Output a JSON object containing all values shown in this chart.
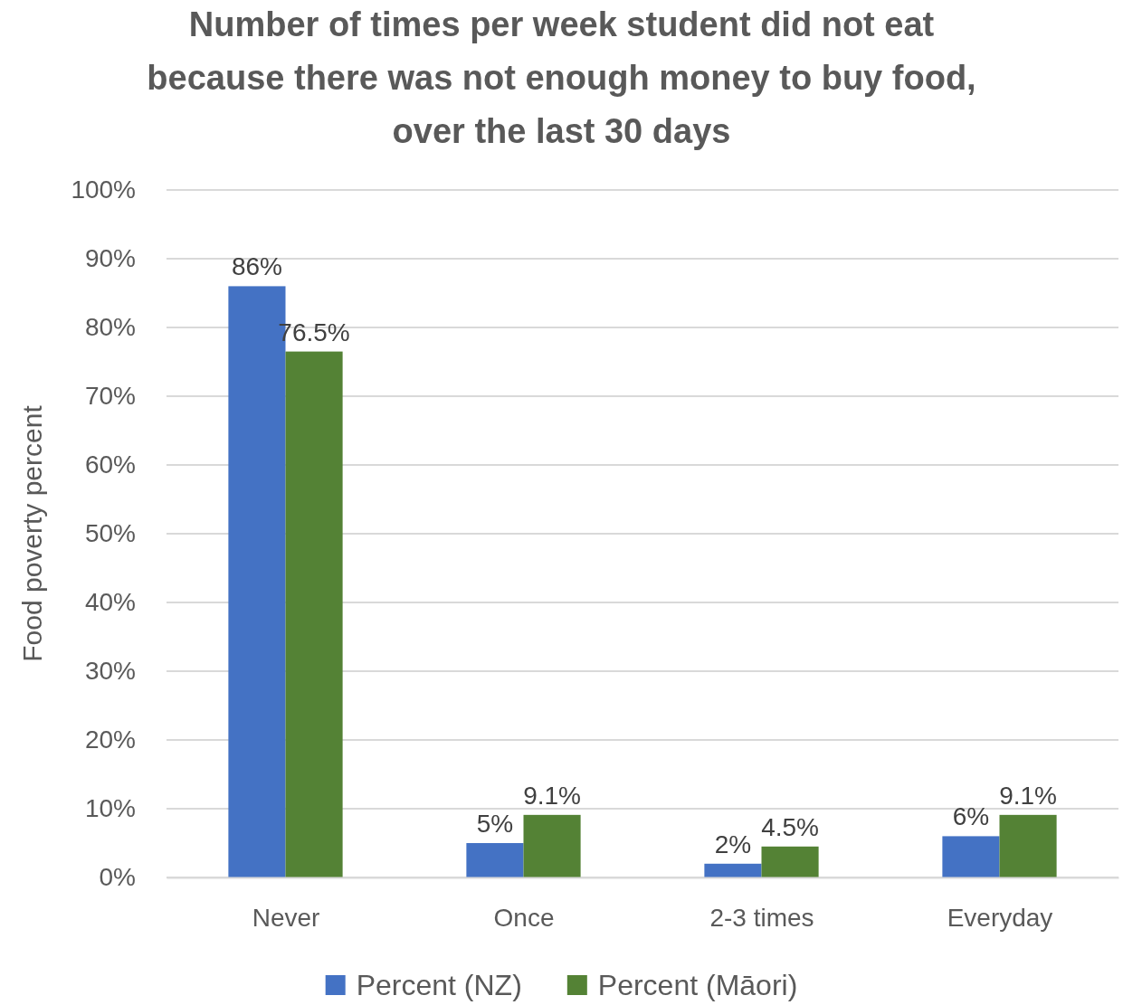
{
  "chart_data": {
    "type": "bar",
    "title": "Number of times per week student did not eat because there was not enough money to buy food, over the last 30 days",
    "ylabel": "Food poverty percent",
    "categories": [
      "Never",
      "Once",
      "2-3 times",
      "Everyday"
    ],
    "series": [
      {
        "name": "Percent (NZ)",
        "color": "#4472c4",
        "values": [
          86,
          5,
          2,
          6
        ],
        "value_labels": [
          "86%",
          "5%",
          "2%",
          "6%"
        ]
      },
      {
        "name": "Percent (Māori)",
        "color": "#548235",
        "values": [
          76.5,
          9.1,
          4.5,
          9.1
        ],
        "value_labels": [
          "76.5%",
          "9.1%",
          "4.5%",
          "9.1%"
        ]
      }
    ],
    "ylim": [
      0,
      100
    ],
    "yticks": [
      {
        "value": 0,
        "label": "0%"
      },
      {
        "value": 10,
        "label": "10%"
      },
      {
        "value": 20,
        "label": "20%"
      },
      {
        "value": 30,
        "label": "30%"
      },
      {
        "value": 40,
        "label": "40%"
      },
      {
        "value": 50,
        "label": "50%"
      },
      {
        "value": 60,
        "label": "60%"
      },
      {
        "value": 70,
        "label": "70%"
      },
      {
        "value": 80,
        "label": "80%"
      },
      {
        "value": 90,
        "label": "90%"
      },
      {
        "value": 100,
        "label": "100%"
      }
    ],
    "grid": "y",
    "legend": "bottom"
  }
}
